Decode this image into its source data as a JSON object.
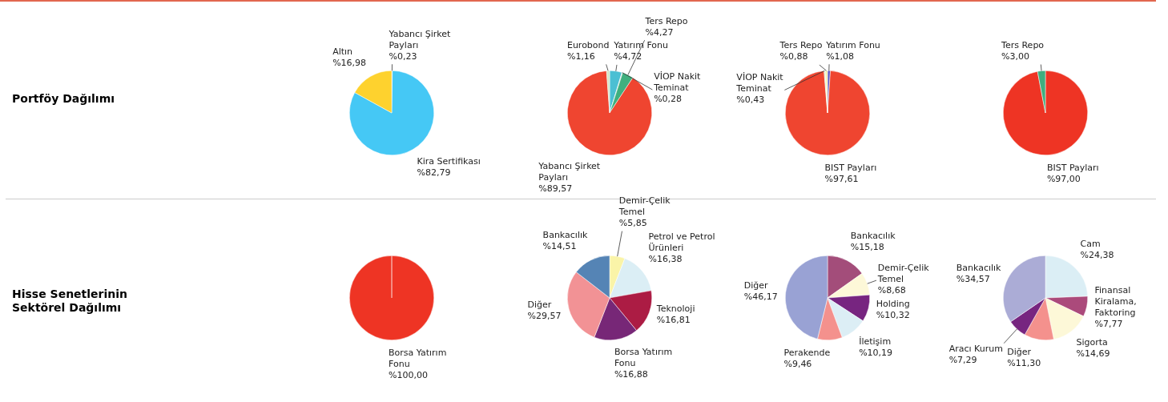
{
  "chart_data": [
    {
      "type": "other",
      "title": "Portföy Dağılımı"
    },
    {
      "type": "pie",
      "categories": [
        "Yabancı Şirket Payları",
        "Kira Sertifikası",
        "Altın"
      ],
      "values": [
        0.23,
        82.79,
        16.98
      ],
      "value_labels": [
        "%0,23",
        "%82,79",
        "%16,98"
      ],
      "colors": [
        "#d9e8c8",
        "#45c8f5",
        "#fed22e"
      ]
    },
    {
      "type": "pie",
      "categories": [
        "Yatırım Fonu",
        "VİOP Nakit Teminat",
        "Ters Repo",
        "Yabancı Şirket Payları",
        "Eurobond"
      ],
      "values": [
        4.72,
        0.28,
        4.27,
        89.57,
        1.16
      ],
      "value_labels": [
        "%4,72",
        "%0,28",
        "%4,27",
        "%89,57",
        "%1,16"
      ],
      "colors": [
        "#4bbfd3",
        "#c9e3d3",
        "#3fb07f",
        "#ef4530",
        "#d6e6c6"
      ]
    },
    {
      "type": "pie",
      "categories": [
        "Yatırım Fonu",
        "BIST Payları",
        "VİOP Nakit Teminat",
        "Ters Repo"
      ],
      "values": [
        1.08,
        97.61,
        0.43,
        0.88
      ],
      "value_labels": [
        "%1,08",
        "%97,61",
        "%0,43",
        "%0,88"
      ],
      "colors": [
        "#5b57c8",
        "#ef4530",
        "#cde8c0",
        "#f6f0b0"
      ]
    },
    {
      "type": "pie",
      "categories": [
        "BIST Payları",
        "Ters Repo"
      ],
      "values": [
        97.0,
        3.0
      ],
      "value_labels": [
        "%97,00",
        "%3,00"
      ],
      "colors": [
        "#ee3424",
        "#3fae7f"
      ]
    },
    {
      "type": "other",
      "title": "Hisse Senetlerinin Sektörel Dağılımı"
    },
    {
      "type": "pie",
      "categories": [
        "Borsa Yatırım Fonu"
      ],
      "values": [
        100.0
      ],
      "value_labels": [
        "%100,00"
      ],
      "colors": [
        "#ee3424"
      ]
    },
    {
      "type": "pie",
      "categories": [
        "Demir-Çelik Temel",
        "Petrol ve Petrol Ürünleri",
        "Teknoloji",
        "Borsa Yatırım Fonu",
        "Diğer",
        "Bankacılık"
      ],
      "values": [
        5.85,
        16.38,
        16.81,
        16.88,
        29.57,
        14.51
      ],
      "value_labels": [
        "%5,85",
        "%16,38",
        "%16,81",
        "%16,88",
        "%29,57",
        "%14,51"
      ],
      "colors": [
        "#faf4a8",
        "#dbeef5",
        "#ac1c44",
        "#772777",
        "#f29295",
        "#5584b5"
      ]
    },
    {
      "type": "pie",
      "categories": [
        "Bankacılık",
        "Demir-Çelik Temel",
        "Holding",
        "İletişim",
        "Perakende",
        "Diğer"
      ],
      "values": [
        15.18,
        8.68,
        10.32,
        10.19,
        9.46,
        46.17
      ],
      "value_labels": [
        "%15,18",
        "%8,68",
        "%10,32",
        "%10,19",
        "%9,46",
        "%46,17"
      ],
      "colors": [
        "#a34d7a",
        "#fdf8d8",
        "#772580",
        "#dceef5",
        "#f4918d",
        "#99a2d4"
      ]
    },
    {
      "type": "pie",
      "categories": [
        "Cam",
        "Finansal Kiralama, Faktoring",
        "Sigorta",
        "Diğer",
        "Aracı Kurum",
        "Bankacılık"
      ],
      "values": [
        24.38,
        7.77,
        14.69,
        11.3,
        7.29,
        34.57
      ],
      "value_labels": [
        "%24,38",
        "%7,77",
        "%14,69",
        "%11,30",
        "%7,29",
        "%34,57"
      ],
      "colors": [
        "#dbeef5",
        "#ab4a7b",
        "#fdf8d8",
        "#f4918d",
        "#772580",
        "#abacd6"
      ]
    }
  ]
}
